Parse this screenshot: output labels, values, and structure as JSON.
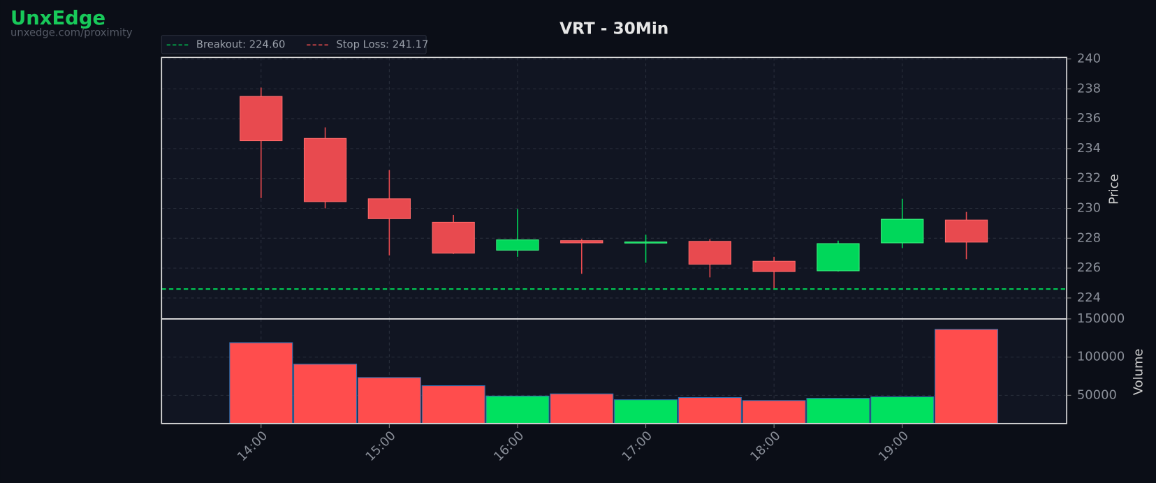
{
  "brand": {
    "name": "UnxEdge",
    "url": "unxedge.com/proximity"
  },
  "chart_data": {
    "type": "candlestick",
    "title": "VRT - 30Min",
    "x": [
      14,
      14.5,
      15,
      15.5,
      16,
      16.5,
      17,
      17.5,
      18,
      18.5,
      19,
      19.5
    ],
    "open": [
      237.49,
      234.68,
      230.64,
      229.07,
      227.2,
      227.84,
      227.7,
      227.79,
      226.46,
      225.82,
      227.69,
      229.22
    ],
    "high": [
      238.08,
      235.42,
      232.56,
      229.56,
      229.95,
      227.94,
      228.23,
      227.94,
      226.76,
      227.84,
      230.64,
      229.76
    ],
    "low": [
      230.69,
      230.0,
      226.85,
      226.95,
      226.76,
      225.62,
      226.36,
      225.38,
      224.64,
      225.77,
      227.35,
      226.6
    ],
    "close": [
      234.53,
      230.45,
      229.31,
      227.0,
      227.89,
      227.69,
      227.75,
      226.26,
      225.77,
      227.64,
      229.27,
      227.74
    ],
    "up_color": "#00d75a",
    "down_color": "#e84a4f",
    "xlim": [
      13.224,
      20.282
    ],
    "xticks": [
      {
        "value": 14,
        "label": "14:00"
      },
      {
        "value": 15,
        "label": "15:00"
      },
      {
        "value": 16,
        "label": "16:00"
      },
      {
        "value": 17,
        "label": "17:00"
      },
      {
        "value": 18,
        "label": "18:00"
      },
      {
        "value": 19,
        "label": "19:00"
      }
    ],
    "ylabel": "Price",
    "ylim": [
      222.6,
      240.1
    ],
    "yticks": [
      224,
      226,
      228,
      230,
      232,
      234,
      236,
      238,
      240
    ],
    "grid": true,
    "lines": [
      {
        "name": "Breakout: 224.60",
        "value": 224.6,
        "color": "#00c853"
      },
      {
        "name": "Stop Loss: 241.17",
        "value": 241.17,
        "color": "#ff5252"
      }
    ],
    "volume": {
      "label": "Volume",
      "values": [
        118900,
        90800,
        73300,
        62600,
        49000,
        51900,
        44200,
        47100,
        43200,
        46100,
        48000,
        136400
      ],
      "up_color": "#00e15f",
      "down_color": "#ff4d4d",
      "ylim": [
        13100,
        150000
      ],
      "yticks": [
        50000,
        100000,
        150000
      ]
    }
  }
}
